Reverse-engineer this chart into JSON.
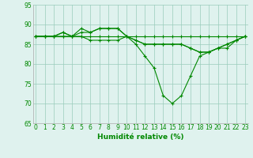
{
  "x": [
    0,
    1,
    2,
    3,
    4,
    5,
    6,
    7,
    8,
    9,
    10,
    11,
    12,
    13,
    14,
    15,
    16,
    17,
    18,
    19,
    20,
    21,
    22,
    23
  ],
  "lines": [
    [
      87,
      87,
      87,
      88,
      87,
      89,
      88,
      89,
      89,
      89,
      87,
      85,
      82,
      79,
      72,
      70,
      72,
      77,
      82,
      83,
      84,
      85,
      86,
      87
    ],
    [
      87,
      87,
      87,
      88,
      87,
      88,
      88,
      89,
      89,
      89,
      87,
      86,
      85,
      85,
      85,
      85,
      85,
      84,
      83,
      83,
      84,
      85,
      86,
      87
    ],
    [
      87,
      87,
      87,
      87,
      87,
      87,
      87,
      87,
      87,
      87,
      87,
      87,
      87,
      87,
      87,
      87,
      87,
      87,
      87,
      87,
      87,
      87,
      87,
      87
    ],
    [
      87,
      87,
      87,
      87,
      87,
      87,
      86,
      86,
      86,
      86,
      87,
      86,
      85,
      85,
      85,
      85,
      85,
      84,
      83,
      83,
      84,
      84,
      86,
      87
    ]
  ],
  "line_color": "#008800",
  "marker": "+",
  "markersize": 3,
  "linewidth": 0.8,
  "ylim": [
    65,
    95
  ],
  "xlim": [
    -0.3,
    23.3
  ],
  "yticks": [
    65,
    70,
    75,
    80,
    85,
    90,
    95
  ],
  "xticks": [
    0,
    1,
    2,
    3,
    4,
    5,
    6,
    7,
    8,
    9,
    10,
    11,
    12,
    13,
    14,
    15,
    16,
    17,
    18,
    19,
    20,
    21,
    22,
    23
  ],
  "xtick_labels": [
    "0",
    "1",
    "2",
    "3",
    "4",
    "5",
    "6",
    "7",
    "8",
    "9",
    "10",
    "11",
    "12",
    "13",
    "14",
    "15",
    "16",
    "17",
    "18",
    "19",
    "20",
    "21",
    "22",
    "23"
  ],
  "xlabel": "Humidité relative (%)",
  "xlabel_fontsize": 6.5,
  "xlabel_color": "#008800",
  "tick_color": "#008800",
  "tick_fontsize": 5.5,
  "grid_color": "#99ccbb",
  "background_color": "#dff2ee",
  "spine_color": "#aaaaaa"
}
